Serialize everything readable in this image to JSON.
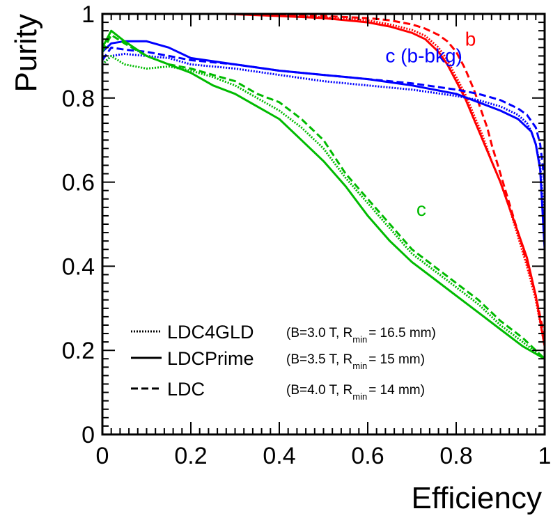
{
  "chart_data": {
    "type": "line",
    "xlabel": "Efficiency",
    "ylabel": "Purity",
    "xlim": [
      0,
      1
    ],
    "ylim": [
      0,
      1
    ],
    "x_ticks": [
      "0",
      "0.2",
      "0.4",
      "0.6",
      "0.8",
      "1"
    ],
    "y_ticks": [
      "0",
      "0.2",
      "0.4",
      "0.6",
      "0.8",
      "1"
    ],
    "grid": false,
    "colors": {
      "b": "#ff0000",
      "c_bbkg": "#0000ff",
      "c": "#00bb00"
    },
    "legend": {
      "placement": "bottom-left",
      "entries": [
        {
          "style": "dotted",
          "name": "LDC4GLD",
          "params_a": "(B=3.0 T, R",
          "sub": "min",
          "params_b": "= 16.5 mm)"
        },
        {
          "style": "solid",
          "name": "LDCPrime",
          "params_a": "(B=3.5 T, R",
          "sub": "min",
          "params_b": "= 15 mm)"
        },
        {
          "style": "dashed",
          "name": "LDC",
          "params_a": "(B=4.0 T, R",
          "sub": "min",
          "params_b": "= 14 mm)"
        }
      ]
    },
    "curve_labels": [
      {
        "key": "b",
        "text": "b",
        "color": "#ff0000",
        "x": 0.82,
        "y": 0.925
      },
      {
        "key": "c_bbkg",
        "text": "c (b-bkg)",
        "color": "#0000ff",
        "x": 0.64,
        "y": 0.885
      },
      {
        "key": "c",
        "text": "c",
        "color": "#00bb00",
        "x": 0.71,
        "y": 0.52
      }
    ],
    "series": [
      {
        "group": "b",
        "style": "solid",
        "color": "#ff0000",
        "x": [
          0.28,
          0.4,
          0.5,
          0.6,
          0.65,
          0.7,
          0.73,
          0.76,
          0.78,
          0.8,
          0.82,
          0.84,
          0.86,
          0.88,
          0.9,
          0.92,
          0.94,
          0.96,
          0.98,
          1.0
        ],
        "y": [
          1.0,
          0.995,
          0.99,
          0.98,
          0.97,
          0.955,
          0.94,
          0.91,
          0.88,
          0.84,
          0.8,
          0.75,
          0.7,
          0.65,
          0.6,
          0.54,
          0.48,
          0.42,
          0.33,
          0.21
        ]
      },
      {
        "group": "b",
        "style": "dotted",
        "color": "#ff0000",
        "x": [
          0.28,
          0.4,
          0.5,
          0.6,
          0.65,
          0.7,
          0.73,
          0.76,
          0.78,
          0.8,
          0.82,
          0.84,
          0.86,
          0.88,
          0.9,
          0.92,
          0.94,
          0.96,
          0.98,
          1.0
        ],
        "y": [
          1.0,
          0.997,
          0.992,
          0.985,
          0.975,
          0.962,
          0.948,
          0.92,
          0.89,
          0.85,
          0.81,
          0.76,
          0.71,
          0.65,
          0.6,
          0.54,
          0.47,
          0.4,
          0.32,
          0.21
        ]
      },
      {
        "group": "b",
        "style": "dashed",
        "color": "#ff0000",
        "x": [
          0.28,
          0.4,
          0.5,
          0.6,
          0.65,
          0.7,
          0.73,
          0.76,
          0.78,
          0.8,
          0.82,
          0.84,
          0.85,
          0.86,
          0.87,
          0.88,
          0.9,
          0.92,
          0.94,
          0.96,
          0.98,
          1.0
        ],
        "y": [
          1.0,
          0.998,
          0.995,
          0.99,
          0.985,
          0.975,
          0.965,
          0.95,
          0.935,
          0.91,
          0.87,
          0.82,
          0.79,
          0.76,
          0.73,
          0.69,
          0.62,
          0.55,
          0.48,
          0.41,
          0.33,
          0.23
        ]
      },
      {
        "group": "c_bbkg",
        "style": "solid",
        "color": "#0000ff",
        "x": [
          0.0,
          0.02,
          0.05,
          0.1,
          0.15,
          0.2,
          0.3,
          0.4,
          0.5,
          0.6,
          0.7,
          0.8,
          0.85,
          0.9,
          0.94,
          0.96,
          0.97,
          0.98,
          0.99,
          1.0
        ],
        "y": [
          0.91,
          0.93,
          0.935,
          0.935,
          0.92,
          0.895,
          0.88,
          0.865,
          0.855,
          0.845,
          0.83,
          0.81,
          0.79,
          0.77,
          0.75,
          0.73,
          0.72,
          0.69,
          0.63,
          0.44
        ]
      },
      {
        "group": "c_bbkg",
        "style": "dotted",
        "color": "#0000ff",
        "x": [
          0.0,
          0.02,
          0.05,
          0.1,
          0.15,
          0.2,
          0.3,
          0.4,
          0.5,
          0.6,
          0.7,
          0.8,
          0.85,
          0.9,
          0.94,
          0.96,
          0.97,
          0.98,
          0.99,
          1.0
        ],
        "y": [
          0.88,
          0.9,
          0.905,
          0.9,
          0.895,
          0.88,
          0.87,
          0.855,
          0.84,
          0.83,
          0.82,
          0.805,
          0.795,
          0.78,
          0.76,
          0.74,
          0.72,
          0.69,
          0.64,
          0.5
        ]
      },
      {
        "group": "c_bbkg",
        "style": "dashed",
        "color": "#0000ff",
        "x": [
          0.0,
          0.02,
          0.05,
          0.1,
          0.15,
          0.2,
          0.3,
          0.4,
          0.5,
          0.6,
          0.7,
          0.8,
          0.85,
          0.9,
          0.94,
          0.96,
          0.97,
          0.98,
          0.99,
          1.0
        ],
        "y": [
          0.89,
          0.92,
          0.915,
          0.91,
          0.9,
          0.89,
          0.88,
          0.865,
          0.855,
          0.845,
          0.835,
          0.82,
          0.81,
          0.795,
          0.775,
          0.76,
          0.745,
          0.73,
          0.69,
          0.6
        ]
      },
      {
        "group": "c",
        "style": "solid",
        "color": "#00bb00",
        "x": [
          0.0,
          0.02,
          0.05,
          0.1,
          0.15,
          0.2,
          0.25,
          0.3,
          0.35,
          0.4,
          0.45,
          0.5,
          0.55,
          0.6,
          0.65,
          0.7,
          0.75,
          0.8,
          0.85,
          0.9,
          0.95,
          1.0
        ],
        "y": [
          0.92,
          0.96,
          0.935,
          0.9,
          0.88,
          0.86,
          0.83,
          0.81,
          0.78,
          0.75,
          0.7,
          0.65,
          0.59,
          0.52,
          0.46,
          0.41,
          0.37,
          0.33,
          0.29,
          0.25,
          0.21,
          0.18
        ]
      },
      {
        "group": "c",
        "style": "dotted",
        "color": "#00bb00",
        "x": [
          0.0,
          0.02,
          0.05,
          0.1,
          0.15,
          0.2,
          0.25,
          0.3,
          0.35,
          0.4,
          0.45,
          0.5,
          0.55,
          0.6,
          0.65,
          0.7,
          0.75,
          0.8,
          0.85,
          0.9,
          0.95,
          1.0
        ],
        "y": [
          0.88,
          0.9,
          0.88,
          0.87,
          0.875,
          0.865,
          0.85,
          0.83,
          0.8,
          0.77,
          0.73,
          0.68,
          0.61,
          0.55,
          0.49,
          0.43,
          0.39,
          0.35,
          0.31,
          0.26,
          0.22,
          0.18
        ]
      },
      {
        "group": "c",
        "style": "dashed",
        "color": "#00bb00",
        "x": [
          0.0,
          0.02,
          0.05,
          0.1,
          0.15,
          0.2,
          0.25,
          0.3,
          0.35,
          0.4,
          0.45,
          0.5,
          0.55,
          0.6,
          0.65,
          0.7,
          0.75,
          0.8,
          0.85,
          0.9,
          0.95,
          1.0
        ],
        "y": [
          0.91,
          0.95,
          0.93,
          0.9,
          0.88,
          0.87,
          0.855,
          0.84,
          0.81,
          0.79,
          0.75,
          0.7,
          0.62,
          0.56,
          0.5,
          0.44,
          0.4,
          0.36,
          0.32,
          0.27,
          0.23,
          0.18
        ]
      }
    ]
  }
}
